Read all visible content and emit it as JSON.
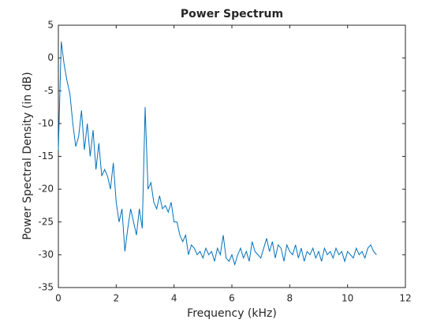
{
  "chart_data": {
    "type": "line",
    "title": "Power Spectrum",
    "x_label": "Frequency (kHz)",
    "y_label": "Power Spectral Density (in dB)",
    "x": [
      0,
      0.1,
      0.2,
      0.3,
      0.4,
      0.5,
      0.6,
      0.7,
      0.8,
      0.9,
      1,
      1.1,
      1.2,
      1.3,
      1.4,
      1.5,
      1.6,
      1.7,
      1.8,
      1.9,
      2,
      2.1,
      2.2,
      2.3,
      2.4,
      2.5,
      2.6,
      2.7,
      2.8,
      2.9,
      3,
      3.1,
      3.2,
      3.3,
      3.4,
      3.5,
      3.6,
      3.7,
      3.8,
      3.9,
      4,
      4.1,
      4.2,
      4.3,
      4.4,
      4.5,
      4.6,
      4.7,
      4.8,
      4.9,
      5,
      5.1,
      5.2,
      5.3,
      5.4,
      5.5,
      5.6,
      5.7,
      5.8,
      5.9,
      6,
      6.1,
      6.2,
      6.3,
      6.4,
      6.5,
      6.6,
      6.7,
      6.8,
      6.9,
      7,
      7.1,
      7.2,
      7.3,
      7.4,
      7.5,
      7.6,
      7.7,
      7.8,
      7.9,
      8,
      8.1,
      8.2,
      8.3,
      8.4,
      8.5,
      8.6,
      8.7,
      8.8,
      8.9,
      9,
      9.1,
      9.2,
      9.3,
      9.4,
      9.5,
      9.6,
      9.7,
      9.8,
      9.9,
      10,
      10.1,
      10.2,
      10.3,
      10.4,
      10.5,
      10.6,
      10.7,
      10.8,
      10.9,
      11
    ],
    "series": [
      {
        "color": "#0072bd",
        "values": [
          -14,
          2.5,
          -1,
          -3.5,
          -5.5,
          -10,
          -13.5,
          -12,
          -8,
          -14,
          -10,
          -15,
          -11,
          -17,
          -13,
          -18,
          -17,
          -18,
          -20,
          -16,
          -22,
          -25,
          -23,
          -29.5,
          -26,
          -23,
          -25,
          -27,
          -23,
          -26,
          -7.5,
          -20,
          -19,
          -22,
          -23,
          -21,
          -23,
          -22.5,
          -23.5,
          -22,
          -25,
          -25,
          -27,
          -28,
          -27,
          -30,
          -28.5,
          -29,
          -30,
          -29.5,
          -30.5,
          -29,
          -30,
          -29.5,
          -31,
          -29,
          -30,
          -27,
          -30.5,
          -31,
          -30,
          -31.5,
          -30,
          -29,
          -30.5,
          -29.5,
          -31,
          -28,
          -29.5,
          -30,
          -30.5,
          -29,
          -27.5,
          -29.5,
          -28,
          -30.5,
          -28.5,
          -29,
          -31,
          -28.5,
          -29.5,
          -30,
          -28.5,
          -30.5,
          -29,
          -31,
          -29.5,
          -30,
          -29,
          -30.5,
          -29.5,
          -31,
          -29,
          -30,
          -29.5,
          -30.5,
          -29,
          -30,
          -29.5,
          -31,
          -29.5,
          -30,
          -30.5,
          -29,
          -30,
          -29.5,
          -30.5,
          -29,
          -28.5,
          -29.5,
          -30
        ]
      }
    ],
    "xlim": [
      0,
      12
    ],
    "xticks": [
      0,
      2,
      4,
      6,
      8,
      10,
      12
    ],
    "ylim": [
      -35,
      5
    ],
    "yticks": [
      -35,
      -30,
      -25,
      -20,
      -15,
      -10,
      -5,
      0,
      5
    ],
    "grid": false
  }
}
